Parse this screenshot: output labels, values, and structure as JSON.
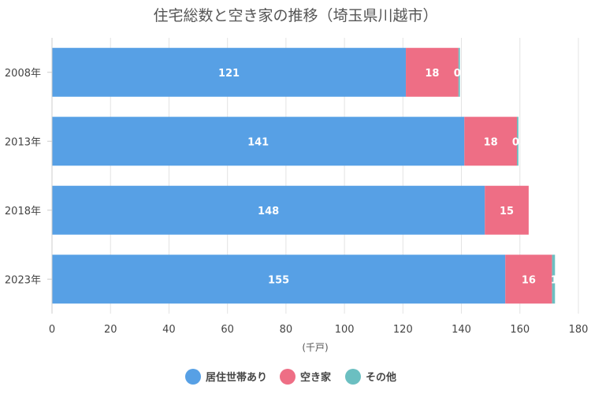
{
  "chart_data": {
    "type": "bar",
    "orientation": "horizontal",
    "stacked": true,
    "title": "住宅総数と空き家の推移（埼玉県川越市）",
    "xlabel": "(千戸)",
    "ylabel": "",
    "categories": [
      "2008年",
      "2013年",
      "2018年",
      "2023年"
    ],
    "series": [
      {
        "name": "居住世帯あり",
        "color": "#57a0e5",
        "values": [
          121,
          141,
          148,
          155
        ],
        "labels": [
          "121",
          "141",
          "148",
          "155"
        ]
      },
      {
        "name": "空き家",
        "color": "#ee6e85",
        "values": [
          18,
          18,
          15,
          16
        ],
        "labels": [
          "18",
          "18",
          "15",
          "16"
        ]
      },
      {
        "name": "その他",
        "color": "#6bbfc1",
        "values": [
          0.5,
          0.5,
          0,
          1
        ],
        "labels": [
          "0.",
          "0.",
          "",
          "1"
        ]
      }
    ],
    "xlim": [
      0,
      180
    ],
    "xticks": [
      0,
      20,
      40,
      60,
      80,
      100,
      120,
      140,
      160,
      180
    ],
    "grid": true,
    "legend": "bottom"
  }
}
